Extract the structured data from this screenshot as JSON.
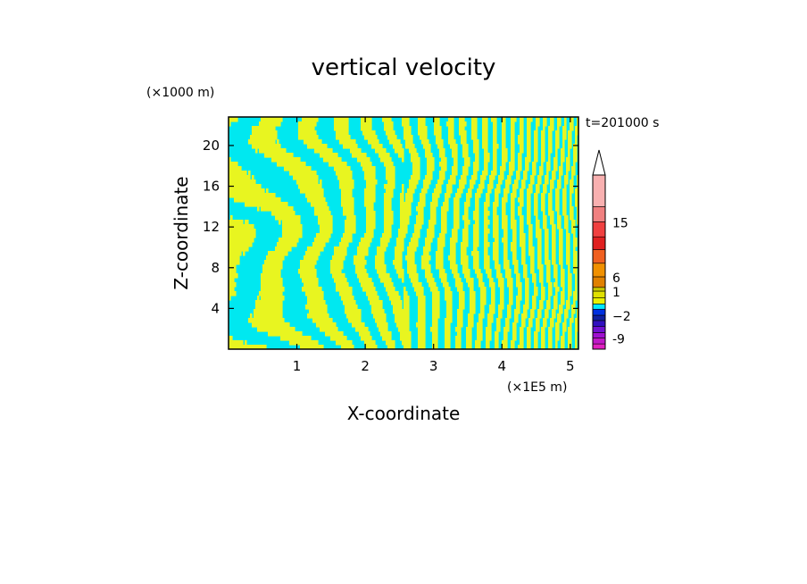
{
  "chart_data": {
    "type": "heatmap",
    "title": "vertical velocity",
    "xlabel": "X-coordinate",
    "ylabel": "Z-coordinate",
    "x_unit": "(×1E5 m)",
    "y_unit": "(×1000 m)",
    "time_label": "t=201000 s",
    "xlim": [
      0,
      5.12
    ],
    "ylim": [
      0,
      22.8
    ],
    "xticks": [
      1,
      2,
      3,
      4,
      5
    ],
    "yticks": [
      4,
      8,
      12,
      16,
      20
    ],
    "colorbar": {
      "levels": [
        -9,
        -2,
        1,
        6,
        15
      ],
      "labels": [
        "-9",
        "−2",
        "1",
        "6",
        "15"
      ],
      "segments": [
        {
          "color": "#e020c0"
        },
        {
          "color": "#c018c8"
        },
        {
          "color": "#a010d0"
        },
        {
          "color": "#7010d0"
        },
        {
          "color": "#3010c0"
        },
        {
          "color": "#1020a0"
        },
        {
          "color": "#0030e0"
        },
        {
          "color": "#00e8ff"
        },
        {
          "color": "#e8f000"
        },
        {
          "color": "#e0e000"
        },
        {
          "color": "#c8c800"
        },
        {
          "color": "#e08000"
        },
        {
          "color": "#f09000"
        },
        {
          "color": "#f06020"
        },
        {
          "color": "#e02020"
        },
        {
          "color": "#f04040"
        },
        {
          "color": "#f08080"
        },
        {
          "color": "#f8b0b0"
        }
      ],
      "extend": "max"
    },
    "field_colors": {
      "up": "#e8f520",
      "down": "#00e8f0"
    },
    "note_pattern": "alternating narrow bands of up/down motion, tilted, finer toward right"
  }
}
